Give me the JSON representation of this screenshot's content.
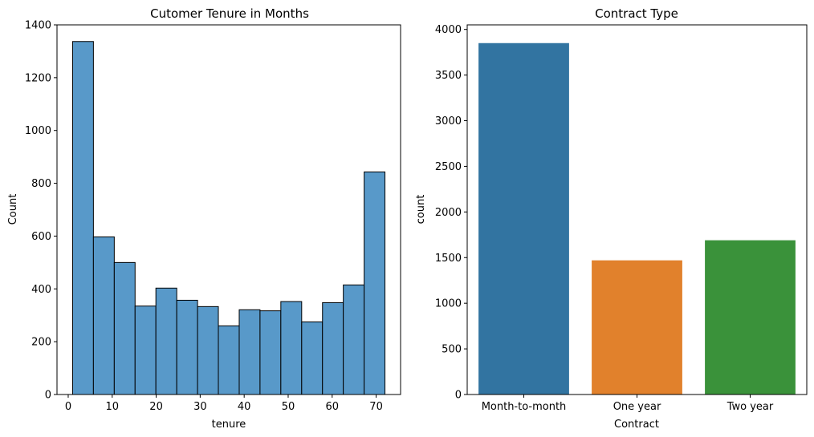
{
  "chart_data": [
    {
      "type": "histogram",
      "title": "Cutomer Tenure in Months",
      "xlabel": "tenure",
      "ylabel": "Count",
      "xlim": [
        -2.55,
        75.55
      ],
      "ylim": [
        0,
        1400
      ],
      "xticks": [
        0,
        10,
        20,
        30,
        40,
        50,
        60,
        70
      ],
      "yticks": [
        0,
        200,
        400,
        600,
        800,
        1000,
        1200,
        1400
      ],
      "bins": [
        {
          "start": 1.0,
          "end": 5.73,
          "count": 1337
        },
        {
          "start": 5.73,
          "end": 10.47,
          "count": 597
        },
        {
          "start": 10.47,
          "end": 15.2,
          "count": 500
        },
        {
          "start": 15.2,
          "end": 19.93,
          "count": 335
        },
        {
          "start": 19.93,
          "end": 24.67,
          "count": 403
        },
        {
          "start": 24.67,
          "end": 29.4,
          "count": 357
        },
        {
          "start": 29.4,
          "end": 34.13,
          "count": 333
        },
        {
          "start": 34.13,
          "end": 38.87,
          "count": 260
        },
        {
          "start": 38.87,
          "end": 43.6,
          "count": 321
        },
        {
          "start": 43.6,
          "end": 48.33,
          "count": 317
        },
        {
          "start": 48.33,
          "end": 53.07,
          "count": 352
        },
        {
          "start": 53.07,
          "end": 57.8,
          "count": 275
        },
        {
          "start": 57.8,
          "end": 62.53,
          "count": 348
        },
        {
          "start": 62.53,
          "end": 67.27,
          "count": 415
        },
        {
          "start": 67.27,
          "end": 72.0,
          "count": 843
        }
      ],
      "color": "#5899c9",
      "edgecolor": "#000000"
    },
    {
      "type": "bar",
      "title": "Contract Type",
      "xlabel": "Contract",
      "ylabel": "count",
      "ylim": [
        0,
        4050
      ],
      "yticks": [
        0,
        500,
        1000,
        1500,
        2000,
        2500,
        3000,
        3500,
        4000
      ],
      "categories": [
        "Month-to-month",
        "One year",
        "Two year"
      ],
      "values": [
        3850,
        1470,
        1690
      ],
      "colors": [
        "#3274a1",
        "#e1812c",
        "#3a923a"
      ]
    }
  ]
}
